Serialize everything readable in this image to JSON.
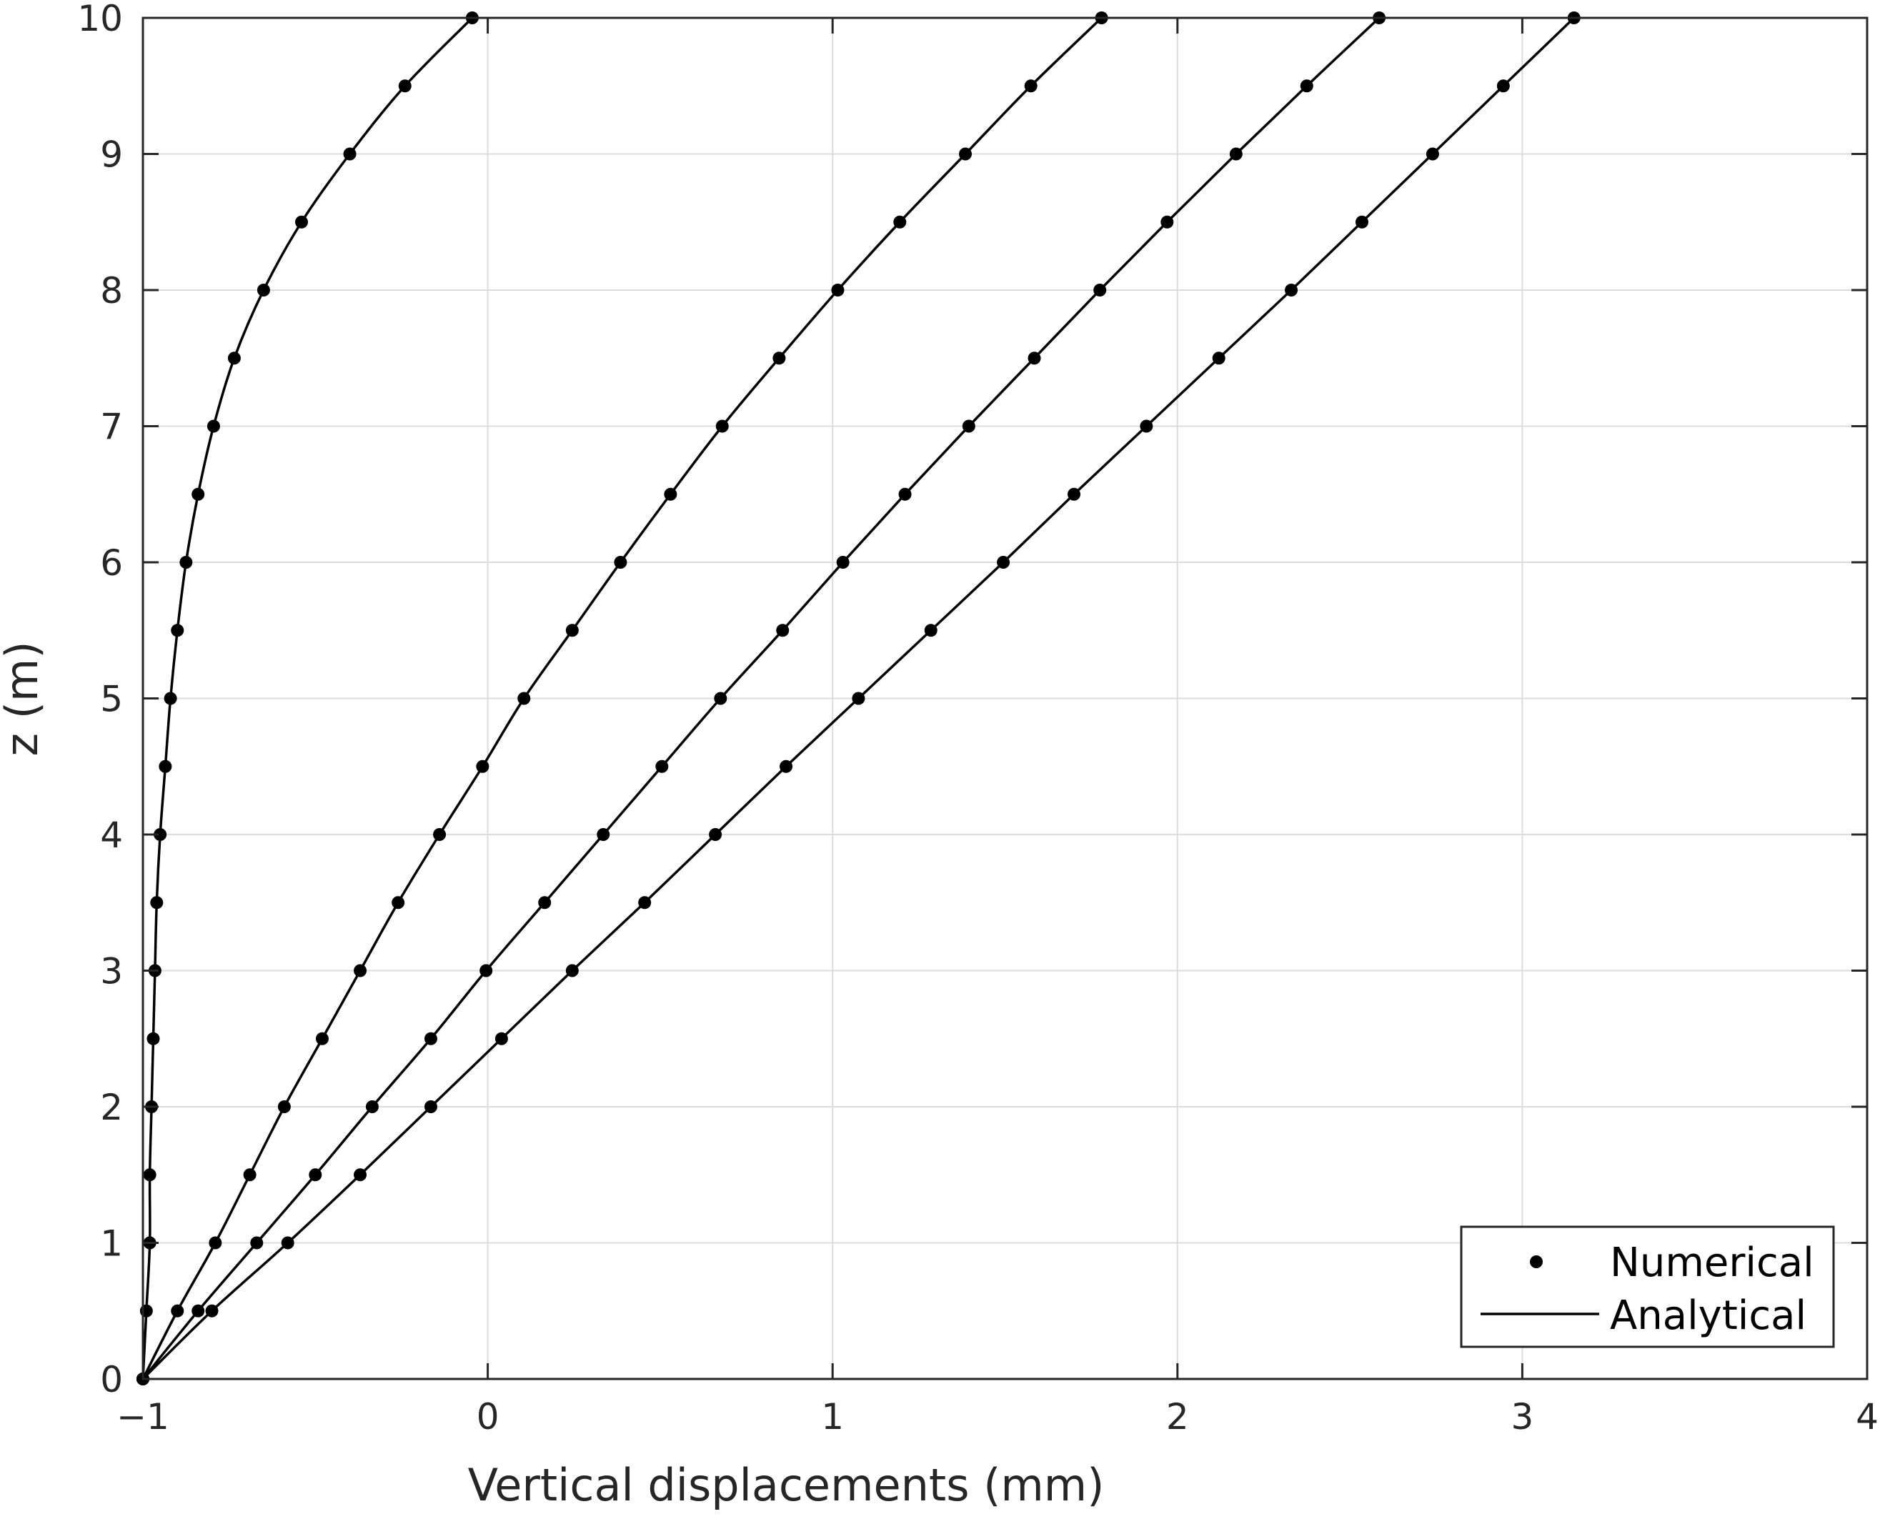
{
  "chart_data": {
    "type": "line",
    "xlabel": "Vertical displacements (mm)",
    "ylabel": "z (m)",
    "xlim": [
      -1,
      4
    ],
    "ylim": [
      0,
      10
    ],
    "xticks": [
      -1,
      0,
      1,
      2,
      3,
      4
    ],
    "xtick_labels": [
      "−1",
      "0",
      "1",
      "2",
      "3",
      "4"
    ],
    "yticks": [
      0,
      1,
      2,
      3,
      4,
      5,
      6,
      7,
      8,
      9,
      10
    ],
    "ytick_labels": [
      "0",
      "1",
      "2",
      "3",
      "4",
      "5",
      "6",
      "7",
      "8",
      "9",
      "10"
    ],
    "grid": true,
    "legend_position": "bottom-right",
    "legend": [
      {
        "label": "Numerical",
        "style": "marker"
      },
      {
        "label": "Analytical",
        "style": "line"
      }
    ],
    "color": "#000000",
    "curves": [
      {
        "points": [
          {
            "x": -1.0,
            "z": 0
          },
          {
            "x": -0.99,
            "z": 0.5
          },
          {
            "x": -0.98,
            "z": 1
          },
          {
            "x": -0.98,
            "z": 1.5
          },
          {
            "x": -0.975,
            "z": 2
          },
          {
            "x": -0.97,
            "z": 2.5
          },
          {
            "x": -0.965,
            "z": 3
          },
          {
            "x": -0.96,
            "z": 3.5
          },
          {
            "x": -0.95,
            "z": 4
          },
          {
            "x": -0.935,
            "z": 4.5
          },
          {
            "x": -0.92,
            "z": 5
          },
          {
            "x": -0.9,
            "z": 5.5
          },
          {
            "x": -0.875,
            "z": 6
          },
          {
            "x": -0.84,
            "z": 6.5
          },
          {
            "x": -0.795,
            "z": 7
          },
          {
            "x": -0.735,
            "z": 7.5
          },
          {
            "x": -0.65,
            "z": 8
          },
          {
            "x": -0.54,
            "z": 8.5
          },
          {
            "x": -0.4,
            "z": 9
          },
          {
            "x": -0.24,
            "z": 9.5
          },
          {
            "x": -0.045,
            "z": 10
          }
        ]
      },
      {
        "points": [
          {
            "x": -1.0,
            "z": 0
          },
          {
            "x": -0.9,
            "z": 0.5
          },
          {
            "x": -0.79,
            "z": 1
          },
          {
            "x": -0.69,
            "z": 1.5
          },
          {
            "x": -0.59,
            "z": 2
          },
          {
            "x": -0.48,
            "z": 2.5
          },
          {
            "x": -0.37,
            "z": 3
          },
          {
            "x": -0.26,
            "z": 3.5
          },
          {
            "x": -0.14,
            "z": 4
          },
          {
            "x": -0.015,
            "z": 4.5
          },
          {
            "x": 0.105,
            "z": 5
          },
          {
            "x": 0.245,
            "z": 5.5
          },
          {
            "x": 0.385,
            "z": 6
          },
          {
            "x": 0.53,
            "z": 6.5
          },
          {
            "x": 0.68,
            "z": 7
          },
          {
            "x": 0.845,
            "z": 7.5
          },
          {
            "x": 1.015,
            "z": 8
          },
          {
            "x": 1.195,
            "z": 8.5
          },
          {
            "x": 1.385,
            "z": 9
          },
          {
            "x": 1.575,
            "z": 9.5
          },
          {
            "x": 1.78,
            "z": 10
          }
        ]
      },
      {
        "points": [
          {
            "x": -1.0,
            "z": 0
          },
          {
            "x": -0.84,
            "z": 0.5
          },
          {
            "x": -0.67,
            "z": 1
          },
          {
            "x": -0.5,
            "z": 1.5
          },
          {
            "x": -0.335,
            "z": 2
          },
          {
            "x": -0.165,
            "z": 2.5
          },
          {
            "x": -0.005,
            "z": 3
          },
          {
            "x": 0.165,
            "z": 3.5
          },
          {
            "x": 0.335,
            "z": 4
          },
          {
            "x": 0.505,
            "z": 4.5
          },
          {
            "x": 0.675,
            "z": 5
          },
          {
            "x": 0.855,
            "z": 5.5
          },
          {
            "x": 1.03,
            "z": 6
          },
          {
            "x": 1.21,
            "z": 6.5
          },
          {
            "x": 1.395,
            "z": 7
          },
          {
            "x": 1.585,
            "z": 7.5
          },
          {
            "x": 1.775,
            "z": 8
          },
          {
            "x": 1.97,
            "z": 8.5
          },
          {
            "x": 2.17,
            "z": 9
          },
          {
            "x": 2.375,
            "z": 9.5
          },
          {
            "x": 2.585,
            "z": 10
          }
        ]
      },
      {
        "points": [
          {
            "x": -1.0,
            "z": 0
          },
          {
            "x": -0.8,
            "z": 0.5
          },
          {
            "x": -0.58,
            "z": 1
          },
          {
            "x": -0.37,
            "z": 1.5
          },
          {
            "x": -0.165,
            "z": 2
          },
          {
            "x": 0.04,
            "z": 2.5
          },
          {
            "x": 0.245,
            "z": 3
          },
          {
            "x": 0.455,
            "z": 3.5
          },
          {
            "x": 0.66,
            "z": 4
          },
          {
            "x": 0.865,
            "z": 4.5
          },
          {
            "x": 1.075,
            "z": 5
          },
          {
            "x": 1.285,
            "z": 5.5
          },
          {
            "x": 1.495,
            "z": 6
          },
          {
            "x": 1.7,
            "z": 6.5
          },
          {
            "x": 1.91,
            "z": 7
          },
          {
            "x": 2.12,
            "z": 7.5
          },
          {
            "x": 2.33,
            "z": 8
          },
          {
            "x": 2.535,
            "z": 8.5
          },
          {
            "x": 2.74,
            "z": 9
          },
          {
            "x": 2.945,
            "z": 9.5
          },
          {
            "x": 3.15,
            "z": 10
          }
        ]
      }
    ]
  }
}
